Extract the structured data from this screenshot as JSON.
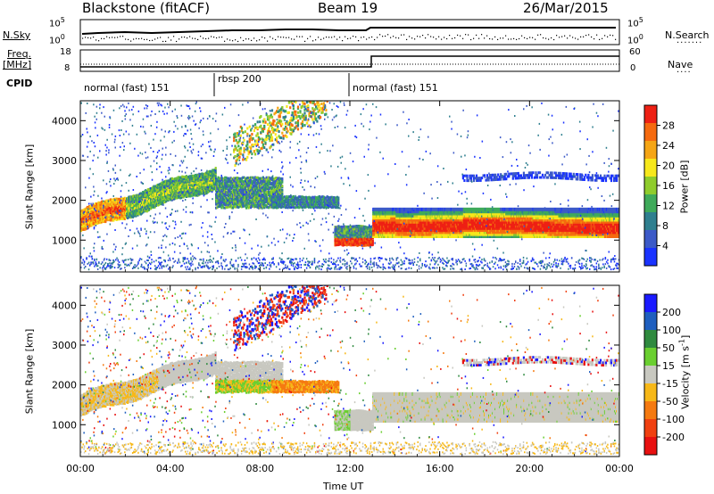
{
  "header": {
    "station": "Blackstone (fitACF)",
    "beam": "Beam 19",
    "date": "26/Mar/2015"
  },
  "left_labels": {
    "nsky": "N.Sky",
    "freq": "Freq.",
    "mhz": "[MHz]",
    "cpid": "CPID"
  },
  "right_labels": {
    "nsearch": "N.Search",
    "nave": "Nave"
  },
  "noise_ticks": {
    "top": "10^5",
    "bottom": "10^0"
  },
  "freq_ticks": {
    "left_top": "18",
    "left_bottom": "8",
    "right_top": "60",
    "right_bottom": "0"
  },
  "cpid_segments": [
    {
      "label": "normal (fast) 151",
      "start_hour": 0,
      "end_hour": 6
    },
    {
      "label": "rbsp 200",
      "start_hour": 6,
      "end_hour": 12.0
    },
    {
      "label": "normal (fast) 151",
      "start_hour": 12.0,
      "end_hour": 24
    }
  ],
  "colors": {
    "power_scale": [
      "#1a33ff",
      "#3c5ac8",
      "#2f7f8f",
      "#3faa5a",
      "#8fcc2c",
      "#f7e81c",
      "#f5a515",
      "#f56a0f",
      "#ee2014"
    ],
    "velocity_scale": [
      "#1a1aff",
      "#1f5fbf",
      "#2f8a3f",
      "#6acf30",
      "#c8c8c0",
      "#f7b818",
      "#f57a10",
      "#f04010",
      "#e81010"
    ]
  },
  "chart_data": [
    {
      "type": "heatmap",
      "title": "",
      "ylabel": "Slant Range [km]",
      "xlabel": "",
      "x_ticks": [
        "00:00",
        "04:00",
        "08:00",
        "12:00",
        "16:00",
        "20:00",
        "00:00"
      ],
      "y_ticks": [
        1000,
        2000,
        3000,
        4000
      ],
      "ylim": [
        200,
        4500
      ],
      "xlim_hours": [
        0,
        24
      ],
      "colorbar_label": "Power [dB]",
      "colorbar_ticks": [
        4,
        8,
        12,
        16,
        20,
        24,
        28
      ],
      "colorbar_range": [
        0,
        32
      ],
      "features": [
        {
          "range_start_km": 1300,
          "range_end_km": 2500,
          "hour_start": 0,
          "hour_end": 6,
          "note": "rising band"
        },
        {
          "range_start_km": 1000,
          "range_end_km": 1800,
          "hour_start": 13,
          "hour_end": 24,
          "note": "strong band 1200-1700 km"
        }
      ]
    },
    {
      "type": "heatmap",
      "title": "",
      "ylabel": "Slant Range [km]",
      "xlabel": "Time UT",
      "x_ticks": [
        "00:00",
        "04:00",
        "08:00",
        "12:00",
        "16:00",
        "20:00",
        "00:00"
      ],
      "y_ticks": [
        1000,
        2000,
        3000,
        4000
      ],
      "ylim": [
        200,
        4500
      ],
      "xlim_hours": [
        0,
        24
      ],
      "colorbar_label": "Velocity [m s",
      "colorbar_label_sup": "-1",
      "colorbar_label_end": "]",
      "colorbar_ticks": [
        200,
        100,
        50,
        15,
        -15,
        -50,
        -100,
        -200
      ],
      "colorbar_range": [
        -250,
        250
      ]
    }
  ]
}
